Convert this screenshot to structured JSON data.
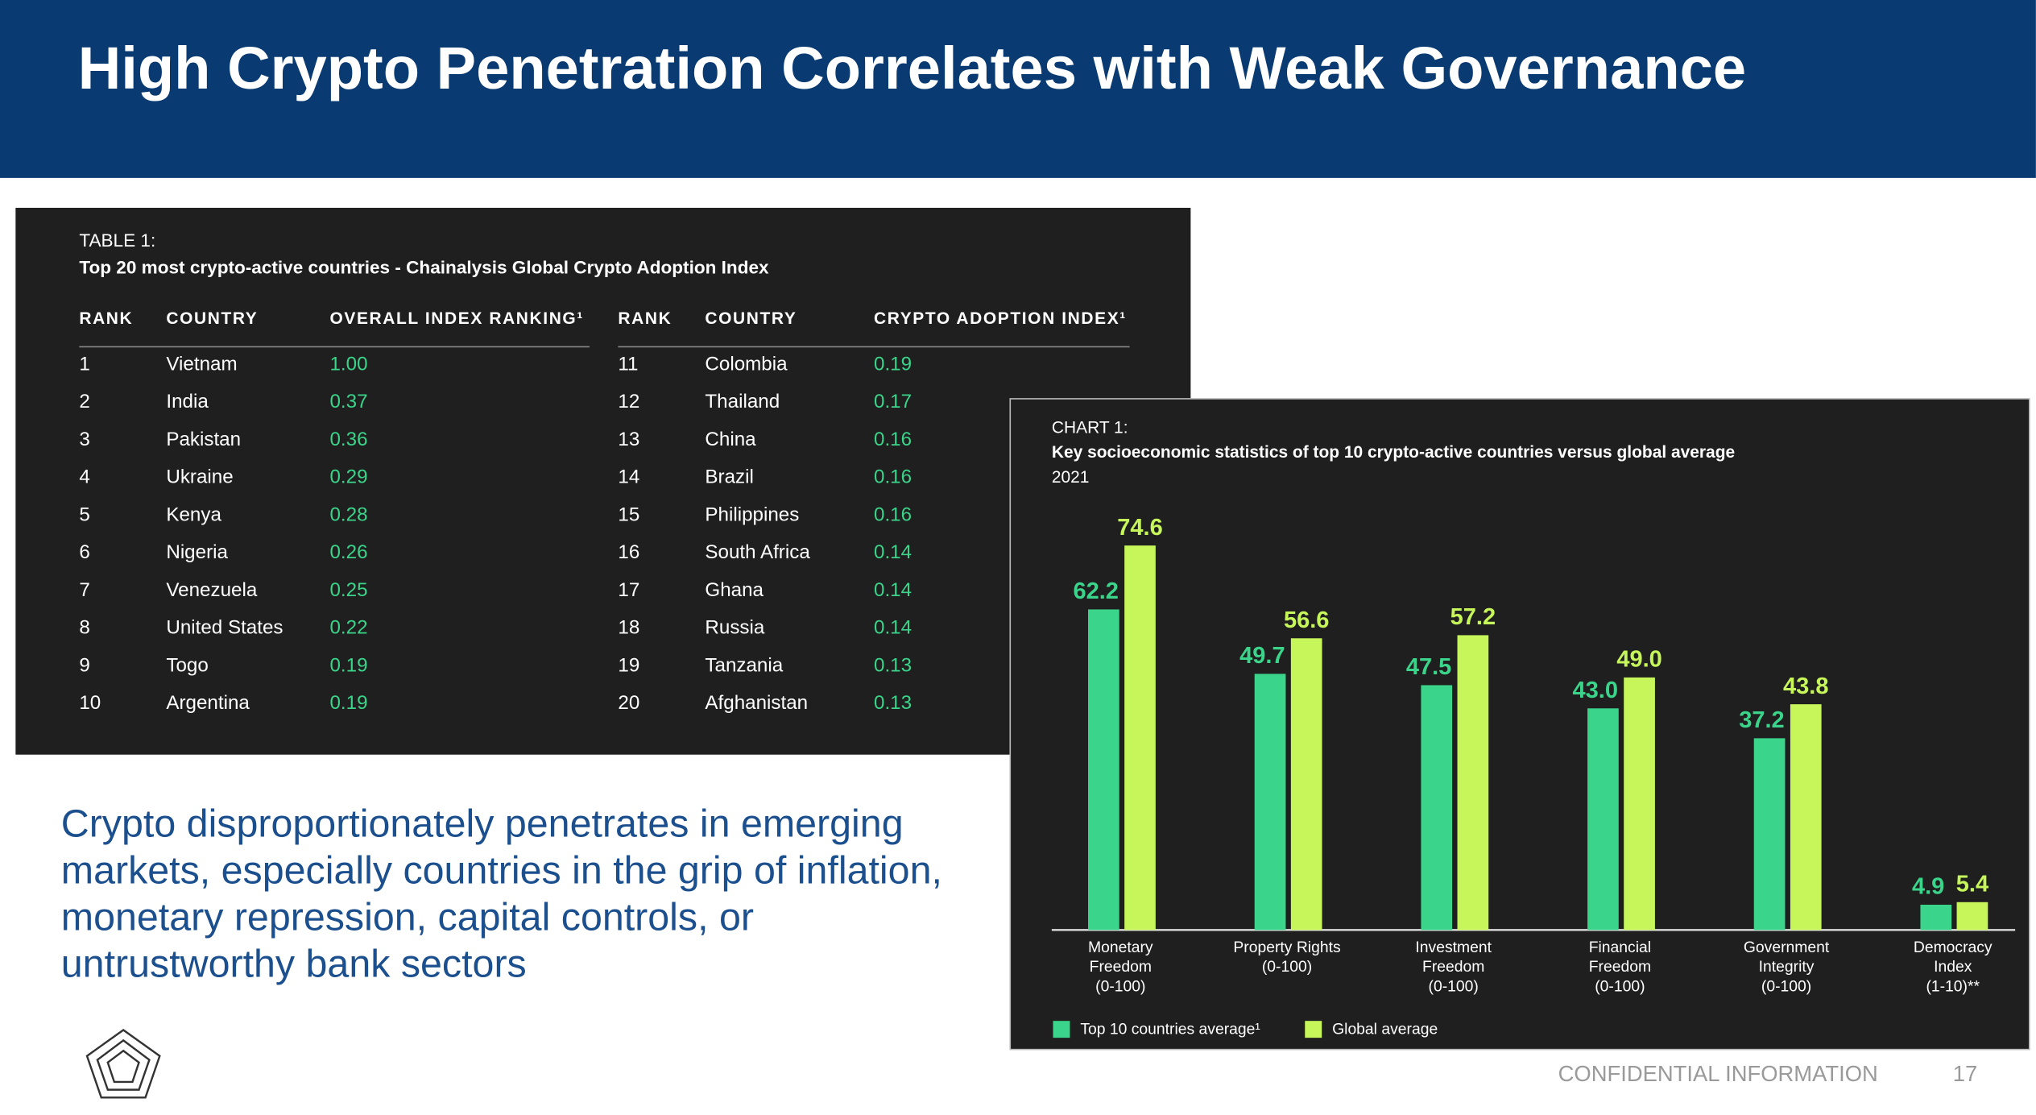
{
  "header": {
    "title": "High Crypto Penetration Correlates with Weak Governance"
  },
  "table": {
    "label": "TABLE 1:",
    "title": "Top 20 most crypto-active countries - Chainalysis Global Crypto Adoption Index",
    "columns": [
      "RANK",
      "COUNTRY",
      "OVERALL INDEX RANKING¹",
      "RANK",
      "COUNTRY",
      "CRYPTO ADOPTION INDEX¹"
    ],
    "rows": [
      [
        1,
        "Vietnam",
        "1.00",
        11,
        "Colombia",
        "0.19"
      ],
      [
        2,
        "India",
        "0.37",
        12,
        "Thailand",
        "0.17"
      ],
      [
        3,
        "Pakistan",
        "0.36",
        13,
        "China",
        "0.16"
      ],
      [
        4,
        "Ukraine",
        "0.29",
        14,
        "Brazil",
        "0.16"
      ],
      [
        5,
        "Kenya",
        "0.28",
        15,
        "Philippines",
        "0.16"
      ],
      [
        6,
        "Nigeria",
        "0.26",
        16,
        "South Africa",
        "0.14"
      ],
      [
        7,
        "Venezuela",
        "0.25",
        17,
        "Ghana",
        "0.14"
      ],
      [
        8,
        "United States",
        "0.22",
        18,
        "Russia",
        "0.14"
      ],
      [
        9,
        "Togo",
        "0.19",
        19,
        "Tanzania",
        "0.13"
      ],
      [
        10,
        "Argentina",
        "0.19",
        20,
        "Afghanistan",
        "0.13"
      ]
    ]
  },
  "chart_data": {
    "type": "bar",
    "label": "CHART 1:",
    "title": "Key socioeconomic statistics of top 10 crypto-active countries versus global average",
    "subtitle": "2021",
    "categories": [
      "Monetary\nFreedom\n(0-100)",
      "Property Rights\n(0-100)",
      "Investment\nFreedom\n(0-100)",
      "Financial\nFreedom\n(0-100)",
      "Government\nIntegrity\n(0-100)",
      "Democracy\nIndex\n(1-10)**"
    ],
    "series": [
      {
        "name": "Top 10 countries average¹",
        "color": "#3ad58a",
        "values": [
          62.2,
          49.7,
          47.5,
          43.0,
          37.2,
          4.9
        ],
        "value_labels": [
          "62.2",
          "49.7",
          "47.5",
          "43.0",
          "37.2",
          "4.9"
        ]
      },
      {
        "name": "Global average",
        "color": "#c6f65a",
        "values": [
          74.6,
          56.6,
          57.2,
          49.0,
          43.8,
          5.4
        ],
        "value_labels": [
          "74.6",
          "56.6",
          "57.2",
          "49.0",
          "43.8",
          "5.4"
        ]
      }
    ],
    "legend": "bottom-left"
  },
  "body": {
    "text": "Crypto disproportionately penetrates in emerging markets, especially countries in the grip of inflation, monetary repression, capital controls, or untrustworthy bank sectors"
  },
  "footer": {
    "confidential": "CONFIDENTIAL INFORMATION",
    "page": "17"
  }
}
